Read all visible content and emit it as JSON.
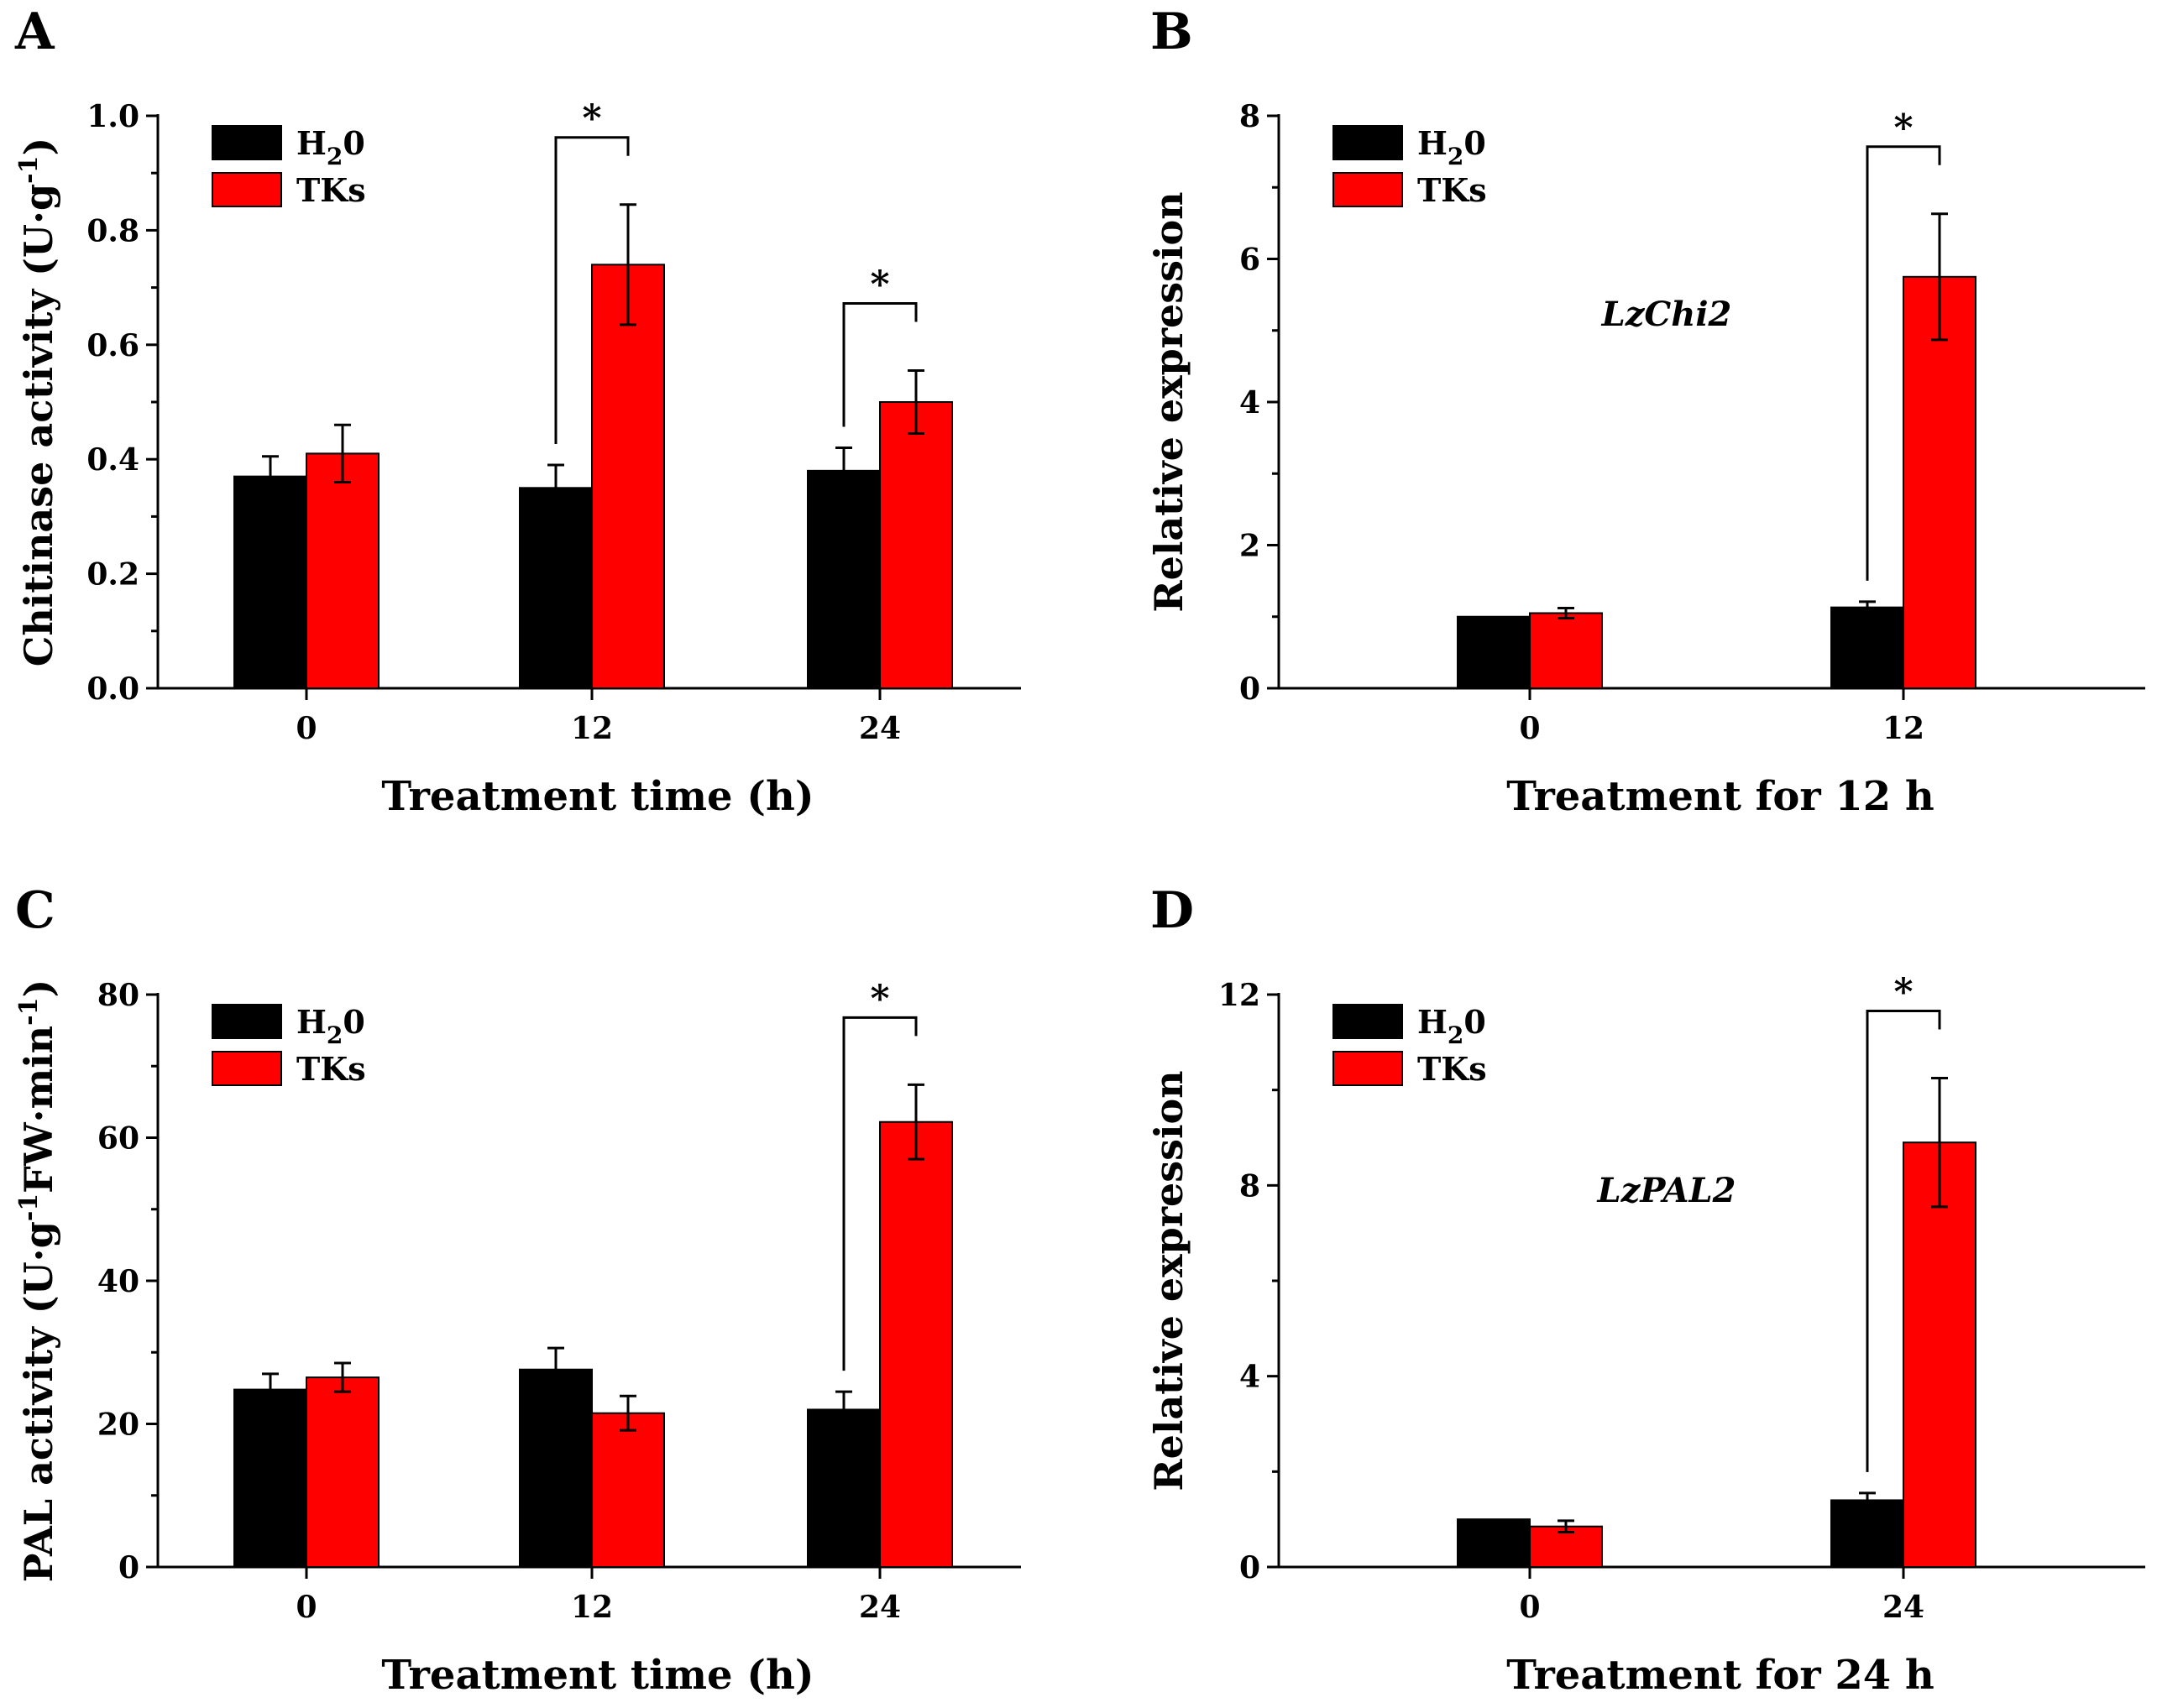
{
  "colors": {
    "h2o": "#000000",
    "tks": "#ff0000"
  },
  "chart_data": [
    {
      "id": "A",
      "letter": "A",
      "type": "bar",
      "title": "",
      "xlabel": "Treatment time (h)",
      "ylabel": "Chitinase activity (U·g-1)",
      "ylabel_parts": {
        "main": "Chitinase activity (U·g",
        "sup": "-1",
        "end": ")"
      },
      "categories": [
        "0",
        "12",
        "24"
      ],
      "ylim": [
        0,
        1.0
      ],
      "yticks": [
        "0.0",
        "0.2",
        "0.4",
        "0.6",
        "0.8",
        "1.0"
      ],
      "series": [
        {
          "name": "H20",
          "values": [
            0.37,
            0.35,
            0.38
          ],
          "errors": [
            0.035,
            0.04,
            0.04
          ]
        },
        {
          "name": "TKs",
          "values": [
            0.41,
            0.74,
            0.5
          ],
          "errors": [
            0.05,
            0.105,
            0.055
          ]
        }
      ],
      "legend": {
        "position": "top-left",
        "entries": [
          {
            "main": "H",
            "sub": "2",
            "end": "0"
          },
          {
            "main": "TKs",
            "sub": "",
            "end": ""
          }
        ]
      },
      "annotations": [
        {
          "category_index": 1,
          "text": "*"
        },
        {
          "category_index": 2,
          "text": "*"
        }
      ],
      "gene_label": ""
    },
    {
      "id": "B",
      "letter": "B",
      "type": "bar",
      "title": "",
      "xlabel": "Treatment for 12 h",
      "ylabel": "Relative expression",
      "ylabel_parts": {
        "main": "Relative expression",
        "sup": "",
        "end": ""
      },
      "categories": [
        "0",
        "12"
      ],
      "ylim": [
        0,
        8
      ],
      "yticks": [
        "0",
        "2",
        "4",
        "6",
        "8"
      ],
      "series": [
        {
          "name": "H20",
          "values": [
            1.0,
            1.13
          ],
          "errors": [
            0.0,
            0.08
          ]
        },
        {
          "name": "TKs",
          "values": [
            1.05,
            5.75
          ],
          "errors": [
            0.07,
            0.88
          ]
        }
      ],
      "legend": {
        "position": "top-left",
        "entries": [
          {
            "main": "H",
            "sub": "2",
            "end": "0"
          },
          {
            "main": "TKs",
            "sub": "",
            "end": ""
          }
        ]
      },
      "annotations": [
        {
          "category_index": 1,
          "text": "*"
        }
      ],
      "gene_label": "LzChi2"
    },
    {
      "id": "C",
      "letter": "C",
      "type": "bar",
      "title": "",
      "xlabel": "Treatment time (h)",
      "ylabel": "PAL activity (U·g-1FW·min-1)",
      "ylabel_parts": {
        "main": "PAL activity (U·g",
        "sup": "-1",
        "end": "FW·min",
        "sup2": "-1",
        "end2": ")"
      },
      "categories": [
        "0",
        "12",
        "24"
      ],
      "ylim": [
        0,
        80
      ],
      "yticks": [
        "0",
        "20",
        "40",
        "60",
        "80"
      ],
      "series": [
        {
          "name": "H20",
          "values": [
            24.8,
            27.6,
            22.0
          ],
          "errors": [
            2.2,
            3.0,
            2.5
          ]
        },
        {
          "name": "TKs",
          "values": [
            26.5,
            21.5,
            62.2
          ],
          "errors": [
            2.0,
            2.4,
            5.2
          ]
        }
      ],
      "legend": {
        "position": "top-left",
        "entries": [
          {
            "main": "H",
            "sub": "2",
            "end": "0"
          },
          {
            "main": "TKs",
            "sub": "",
            "end": ""
          }
        ]
      },
      "annotations": [
        {
          "category_index": 2,
          "text": "*"
        }
      ],
      "gene_label": ""
    },
    {
      "id": "D",
      "letter": "D",
      "type": "bar",
      "title": "",
      "xlabel": "Treatment for 24 h",
      "ylabel": "Relative expression",
      "ylabel_parts": {
        "main": "Relative expression",
        "sup": "",
        "end": ""
      },
      "categories": [
        "0",
        "24"
      ],
      "ylim": [
        0,
        12
      ],
      "yticks": [
        "0",
        "4",
        "8",
        "12"
      ],
      "series": [
        {
          "name": "H20",
          "values": [
            1.0,
            1.4
          ],
          "errors": [
            0.0,
            0.15
          ]
        },
        {
          "name": "TKs",
          "values": [
            0.85,
            8.9
          ],
          "errors": [
            0.12,
            1.35
          ]
        }
      ],
      "legend": {
        "position": "top-left",
        "entries": [
          {
            "main": "H",
            "sub": "2",
            "end": "0"
          },
          {
            "main": "TKs",
            "sub": "",
            "end": ""
          }
        ]
      },
      "annotations": [
        {
          "category_index": 1,
          "text": "*"
        }
      ],
      "gene_label": "LzPAL2"
    }
  ]
}
